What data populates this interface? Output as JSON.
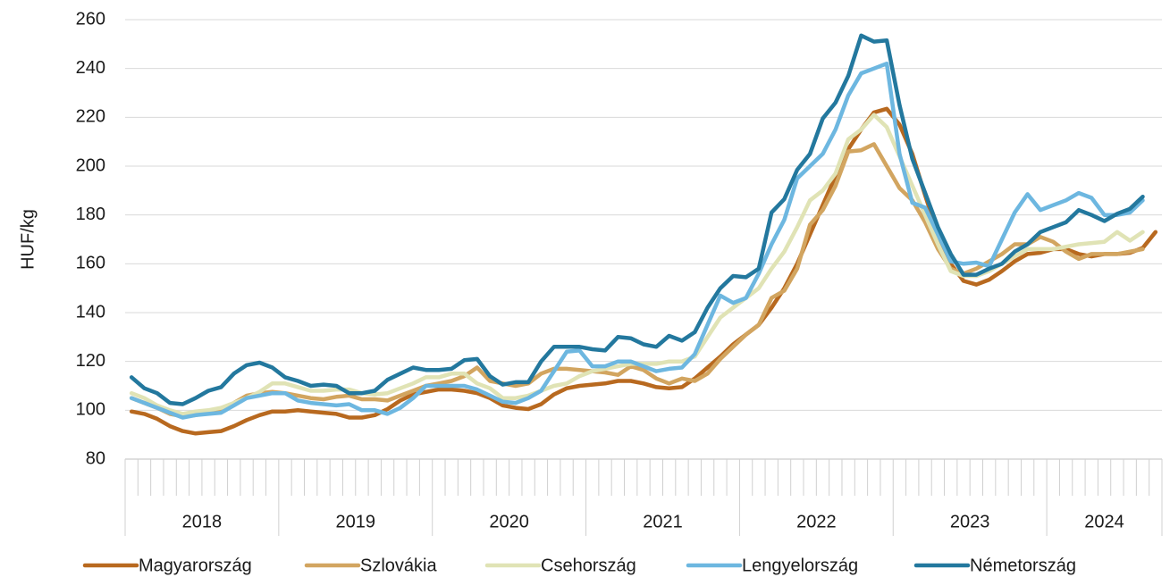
{
  "chart_data": {
    "type": "line",
    "y_label": "HUF/kg",
    "groups": [
      "2018",
      "2019",
      "2020",
      "2021",
      "2022",
      "2023",
      "2024"
    ],
    "categories": [
      null,
      null,
      null,
      null,
      null,
      null,
      null,
      null,
      null,
      null,
      null,
      null,
      null,
      null,
      null,
      null,
      null,
      null,
      null,
      null,
      null,
      null,
      null,
      null,
      null,
      null,
      null,
      null,
      null,
      null,
      null,
      null,
      null,
      null,
      null,
      null,
      null,
      null,
      null,
      null,
      null,
      null,
      null,
      null,
      null,
      null,
      null,
      null,
      null,
      null,
      null,
      null,
      null,
      null,
      null,
      null,
      null,
      null,
      null,
      null,
      null,
      null,
      null,
      null,
      null,
      null,
      null,
      null,
      null,
      null,
      null,
      null,
      null,
      null,
      null,
      null,
      null,
      null,
      null,
      null,
      null
    ],
    "ylim": [
      80,
      260
    ],
    "yticks": [
      80,
      100,
      120,
      140,
      160,
      180,
      200,
      220,
      240,
      260
    ],
    "grid": true,
    "legend": "bottom",
    "series": [
      {
        "name": "Magyarország",
        "color": "#b8691f",
        "values": [
          99.5,
          98.5,
          96.5,
          93.5,
          91.5,
          90.5,
          91,
          91.5,
          93.5,
          96,
          98,
          99.5,
          99.5,
          100,
          99.5,
          99,
          98.5,
          97,
          97,
          98,
          100.5,
          104,
          106.5,
          107.5,
          108.5,
          108.5,
          108,
          107,
          105,
          102,
          101,
          100.5,
          102.5,
          106.5,
          109,
          110,
          110.5,
          111,
          112,
          112,
          111,
          109.5,
          109,
          109.5,
          113,
          117.5,
          122,
          127,
          131,
          135,
          142,
          150,
          160,
          172,
          184,
          196,
          207,
          215,
          222,
          223.5,
          217,
          205,
          188,
          172,
          160,
          153,
          151.5,
          153.5,
          157,
          161,
          164,
          164.5,
          166,
          166,
          164,
          163,
          164,
          164,
          164.5,
          166.5,
          173
        ]
      },
      {
        "name": "Szlovákia",
        "color": "#d2a560",
        "values": [
          105,
          103,
          101,
          98.5,
          97.5,
          98,
          99,
          100,
          103,
          106,
          107,
          107.5,
          107,
          106,
          105,
          104.5,
          105.5,
          106,
          104.5,
          104.5,
          104,
          106,
          108,
          110,
          111,
          112,
          114,
          117.5,
          112,
          111,
          110,
          111,
          115,
          117,
          117,
          116.5,
          116,
          115.5,
          114.5,
          118,
          116.5,
          113,
          111,
          113,
          112,
          115,
          121,
          126,
          131,
          135,
          146,
          149,
          158,
          176,
          182,
          192,
          206,
          206.5,
          209,
          200,
          191,
          186,
          177,
          166,
          158,
          156,
          158,
          161,
          164,
          168,
          168,
          171,
          169,
          165,
          162,
          164,
          164,
          164,
          165,
          166,
          null
        ]
      },
      {
        "name": "Csehország",
        "color": "#e0e3b5",
        "values": [
          107,
          105,
          102,
          100,
          98.5,
          99.5,
          100,
          101,
          103,
          105,
          107.5,
          111,
          111,
          109.5,
          108,
          108,
          108.5,
          108.5,
          107,
          106.5,
          107,
          109,
          111,
          113.5,
          113.5,
          115,
          115,
          111,
          109,
          105,
          105,
          106,
          108,
          110,
          111,
          114,
          116,
          117,
          118,
          119,
          119,
          119,
          120,
          120,
          122,
          130,
          138,
          142,
          146,
          150,
          158,
          165,
          175,
          186,
          190,
          197,
          211,
          215,
          221,
          216,
          204,
          192,
          180,
          168,
          157,
          155,
          155,
          157,
          160,
          163,
          166,
          166,
          166,
          167,
          168,
          168.5,
          169,
          173,
          169.5,
          173,
          null
        ]
      },
      {
        "name": "Lengyelország",
        "color": "#6db7e0",
        "values": [
          105,
          103,
          101,
          99,
          97,
          98,
          98.5,
          99,
          102,
          105,
          106,
          107,
          107,
          104,
          103,
          102.5,
          102,
          102.5,
          100,
          100,
          98.5,
          101,
          105,
          110,
          110,
          110,
          110,
          108.5,
          106,
          103.5,
          103,
          105,
          108,
          116,
          124,
          124.5,
          118,
          118,
          120,
          120,
          118,
          116,
          117,
          117.5,
          123,
          135,
          147,
          144,
          146,
          156,
          168,
          178,
          195,
          200,
          205,
          215,
          229,
          238,
          240,
          242,
          205,
          185,
          183,
          172,
          161,
          160,
          160.5,
          159,
          170,
          181,
          188.5,
          182,
          184,
          186,
          189,
          187,
          180,
          180,
          181,
          186,
          null
        ]
      },
      {
        "name": "Németország",
        "color": "#23789e",
        "values": [
          113.5,
          109,
          107,
          103,
          102.5,
          105,
          108,
          109.5,
          115,
          118.5,
          119.5,
          117.5,
          113.5,
          112,
          110,
          110.5,
          110,
          107,
          107,
          108,
          112.5,
          115,
          117.5,
          116.5,
          116.5,
          117,
          120.5,
          121,
          114,
          110.5,
          111.5,
          111.5,
          120,
          126,
          126,
          126,
          125,
          124.5,
          130,
          129.5,
          127,
          126,
          130.5,
          128.5,
          132,
          142,
          150,
          155,
          154.5,
          158,
          181,
          186.5,
          198.5,
          205,
          219.5,
          226,
          237,
          253.5,
          251,
          251.5,
          225,
          203,
          189,
          175,
          164,
          155.5,
          155.5,
          158,
          160,
          165,
          168,
          173,
          175,
          177,
          182,
          180,
          177.5,
          180.5,
          182.5,
          187.5,
          null
        ]
      }
    ]
  }
}
